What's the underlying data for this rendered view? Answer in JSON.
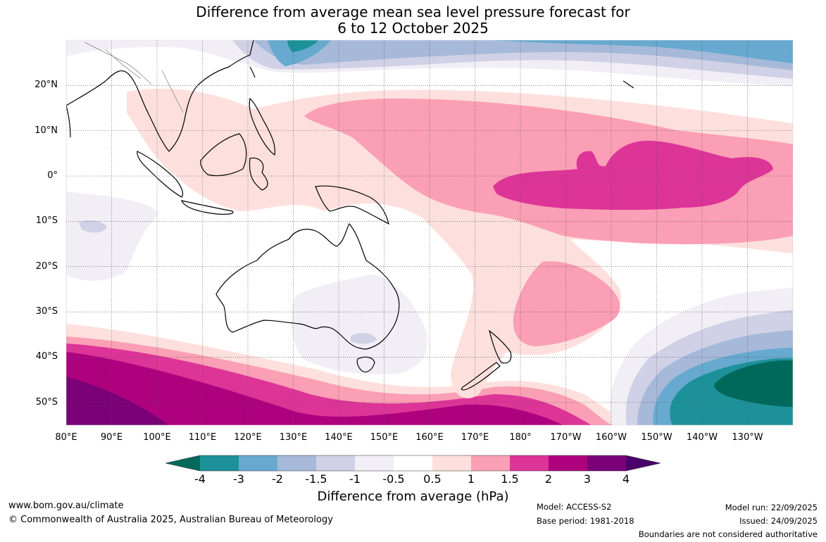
{
  "title": {
    "line1": "Difference from average mean sea level pressure forecast for",
    "line2": "6 to 12 October 2025"
  },
  "map": {
    "lon_range_east": [
      80,
      240
    ],
    "lat_range": [
      -55,
      30
    ],
    "gridlines": "dotted"
  },
  "axes": {
    "lat_labels": [
      "20°N",
      "10°N",
      "0°",
      "10°S",
      "20°S",
      "30°S",
      "40°S",
      "50°S"
    ],
    "lon_labels": [
      "80°E",
      "90°E",
      "100°E",
      "110°E",
      "120°E",
      "130°E",
      "140°E",
      "150°E",
      "160°E",
      "170°E",
      "180°",
      "170°W",
      "160°W",
      "150°W",
      "140°W",
      "130°W"
    ]
  },
  "colorbar": {
    "ticks": [
      "-4",
      "-3",
      "-2",
      "-1.5",
      "-1",
      "-0.5",
      "0.5",
      "1",
      "1.5",
      "2",
      "3",
      "4"
    ],
    "colors": [
      "#00695c",
      "#1c9199",
      "#67a9cf",
      "#a6b9d9",
      "#d0d1e6",
      "#f1eef6",
      "#ffffff",
      "#fde0dd",
      "#fa9fb5",
      "#dd3497",
      "#ae017e",
      "#7a0177",
      "#49006a"
    ],
    "label": "Difference from average (hPa)"
  },
  "footer": {
    "website": "www.bom.gov.au/climate",
    "copyright": "© Commonwealth of Australia 2025, Australian Bureau of Meteorology",
    "model": "Model: ACCESS-S2",
    "base_period": "Base period: 1981-2018",
    "model_run": "Model run: 22/09/2025",
    "issued": "Issued: 24/09/2025",
    "disclaimer": "Boundaries are not considered authoritative"
  }
}
